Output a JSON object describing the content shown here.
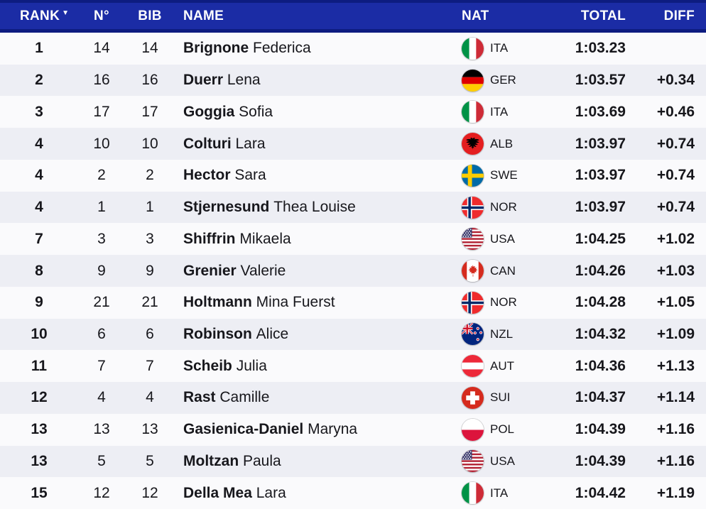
{
  "colors": {
    "header_bg": "#1B2CA5",
    "header_edge": "#0D1C80",
    "header_text": "#FFFFFF",
    "row_light": "#FAFAFC",
    "row_alt": "#EDEEF4",
    "text": "#17171C"
  },
  "header": {
    "sort_icon": "▼",
    "columns": {
      "rank": "RANK",
      "number": "N°",
      "bib": "BIB",
      "name": "NAME",
      "nat": "NAT",
      "total": "TOTAL",
      "diff": "DIFF"
    }
  },
  "rows": [
    {
      "rank": "1",
      "number": "14",
      "bib": "14",
      "last": "Brignone",
      "first": "Federica",
      "flag": "ita",
      "nat": "ITA",
      "total": "1:03.23",
      "diff": ""
    },
    {
      "rank": "2",
      "number": "16",
      "bib": "16",
      "last": "Duerr",
      "first": "Lena",
      "flag": "ger",
      "nat": "GER",
      "total": "1:03.57",
      "diff": "+0.34"
    },
    {
      "rank": "3",
      "number": "17",
      "bib": "17",
      "last": "Goggia",
      "first": "Sofia",
      "flag": "ita",
      "nat": "ITA",
      "total": "1:03.69",
      "diff": "+0.46"
    },
    {
      "rank": "4",
      "number": "10",
      "bib": "10",
      "last": "Colturi",
      "first": "Lara",
      "flag": "alb",
      "nat": "ALB",
      "total": "1:03.97",
      "diff": "+0.74"
    },
    {
      "rank": "4",
      "number": "2",
      "bib": "2",
      "last": "Hector",
      "first": "Sara",
      "flag": "swe",
      "nat": "SWE",
      "total": "1:03.97",
      "diff": "+0.74"
    },
    {
      "rank": "4",
      "number": "1",
      "bib": "1",
      "last": "Stjernesund",
      "first": "Thea Louise",
      "flag": "nor",
      "nat": "NOR",
      "total": "1:03.97",
      "diff": "+0.74"
    },
    {
      "rank": "7",
      "number": "3",
      "bib": "3",
      "last": "Shiffrin",
      "first": "Mikaela",
      "flag": "usa",
      "nat": "USA",
      "total": "1:04.25",
      "diff": "+1.02"
    },
    {
      "rank": "8",
      "number": "9",
      "bib": "9",
      "last": "Grenier",
      "first": "Valerie",
      "flag": "can",
      "nat": "CAN",
      "total": "1:04.26",
      "diff": "+1.03"
    },
    {
      "rank": "9",
      "number": "21",
      "bib": "21",
      "last": "Holtmann",
      "first": "Mina Fuerst",
      "flag": "nor",
      "nat": "NOR",
      "total": "1:04.28",
      "diff": "+1.05"
    },
    {
      "rank": "10",
      "number": "6",
      "bib": "6",
      "last": "Robinson",
      "first": "Alice",
      "flag": "nzl",
      "nat": "NZL",
      "total": "1:04.32",
      "diff": "+1.09"
    },
    {
      "rank": "11",
      "number": "7",
      "bib": "7",
      "last": "Scheib",
      "first": "Julia",
      "flag": "aut",
      "nat": "AUT",
      "total": "1:04.36",
      "diff": "+1.13"
    },
    {
      "rank": "12",
      "number": "4",
      "bib": "4",
      "last": "Rast",
      "first": "Camille",
      "flag": "sui",
      "nat": "SUI",
      "total": "1:04.37",
      "diff": "+1.14"
    },
    {
      "rank": "13",
      "number": "13",
      "bib": "13",
      "last": "Gasienica-Daniel",
      "first": "Maryna",
      "flag": "pol",
      "nat": "POL",
      "total": "1:04.39",
      "diff": "+1.16"
    },
    {
      "rank": "13",
      "number": "5",
      "bib": "5",
      "last": "Moltzan",
      "first": "Paula",
      "flag": "usa",
      "nat": "USA",
      "total": "1:04.39",
      "diff": "+1.16"
    },
    {
      "rank": "15",
      "number": "12",
      "bib": "12",
      "last": "Della Mea",
      "first": "Lara",
      "flag": "ita",
      "nat": "ITA",
      "total": "1:04.42",
      "diff": "+1.19"
    }
  ]
}
